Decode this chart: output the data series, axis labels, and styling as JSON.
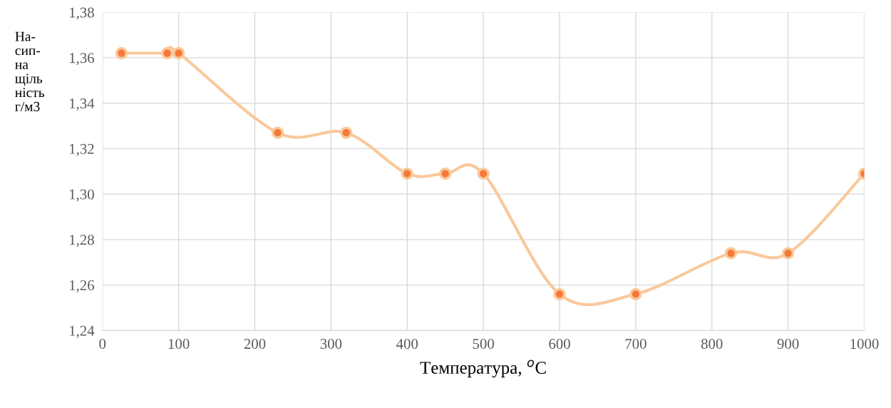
{
  "chart_data": {
    "type": "line",
    "xlabel": "Температура, $^{o}$C",
    "ylabel": "На-\nсип-\nна\nщіль\nність\nг/м3",
    "x": [
      25,
      85,
      100,
      230,
      320,
      400,
      450,
      500,
      600,
      700,
      825,
      900,
      1000
    ],
    "series": [
      {
        "color": "#f9c99b",
        "colors": [
          "#f5793a",
          "#f5793a",
          "#f5793a",
          "#f5793a",
          "#f5793a",
          "#f5793a",
          "#f5793a",
          "#f5793a",
          "#f5793a",
          "#f5793a",
          "#f5793a",
          "#f5793a",
          "#f5793a"
        ],
        "values": [
          1.362,
          1.362,
          1.362,
          1.327,
          1.327,
          1.309,
          1.309,
          1.309,
          1.256,
          1.256,
          1.274,
          1.274,
          1.309
        ]
      }
    ],
    "marker": "circle",
    "line_style": "solid",
    "grid": true,
    "xlim": [
      0,
      1000
    ],
    "xticks": [
      0,
      100,
      200,
      300,
      400,
      500,
      600,
      700,
      800,
      900,
      1000
    ],
    "ylim": [
      1.24,
      1.38
    ],
    "yticks": [
      {
        "value": 1.24,
        "label": "1,24"
      },
      {
        "value": 1.26,
        "label": "1,26"
      },
      {
        "value": 1.28,
        "label": "1,28"
      },
      {
        "value": 1.3,
        "label": "1,30"
      },
      {
        "value": 1.32,
        "label": "1,32"
      },
      {
        "value": 1.34,
        "label": "1,34"
      },
      {
        "value": 1.36,
        "label": "1,36"
      },
      {
        "value": 1.38,
        "label": "1,38"
      }
    ]
  }
}
